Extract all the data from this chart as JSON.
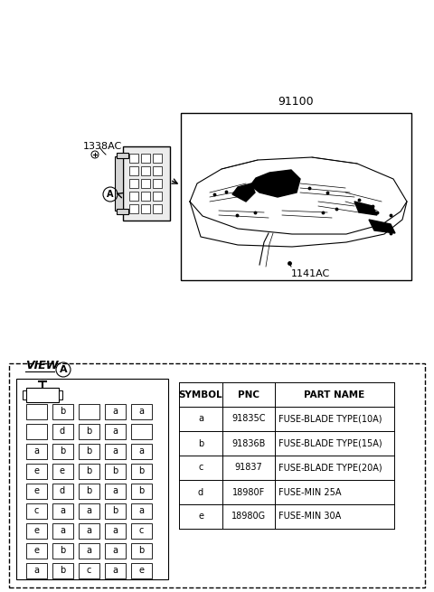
{
  "bg_color": "#ffffff",
  "part_number_main": "91100",
  "part_number_bolt": "1338AC",
  "part_number_clip": "1141AC",
  "table_headers": [
    "SYMBOL",
    "PNC",
    "PART NAME"
  ],
  "table_rows": [
    [
      "a",
      "91835C",
      "FUSE-BLADE TYPE(10A)"
    ],
    [
      "b",
      "91836B",
      "FUSE-BLADE TYPE(15A)"
    ],
    [
      "c",
      "91837",
      "FUSE-BLADE TYPE(20A)"
    ],
    [
      "d",
      "18980F",
      "FUSE-MIN 25A"
    ],
    [
      "e",
      "18980G",
      "FUSE-MIN 30A"
    ]
  ],
  "fuse_grid": [
    [
      "",
      "b",
      "",
      "a",
      "a"
    ],
    [
      "",
      "d",
      "b",
      "a",
      ""
    ],
    [
      "a",
      "b",
      "b",
      "a",
      "a"
    ],
    [
      "e",
      "e",
      "b",
      "b",
      "b"
    ],
    [
      "e",
      "d",
      "b",
      "a",
      "b"
    ],
    [
      "c",
      "a",
      "a",
      "b",
      "a"
    ],
    [
      "e",
      "a",
      "a",
      "a",
      "c"
    ],
    [
      "e",
      "b",
      "a",
      "a",
      "b"
    ],
    [
      "a",
      "b",
      "c",
      "a",
      "e"
    ]
  ],
  "view_label": "VIEW",
  "circle_label": "A"
}
